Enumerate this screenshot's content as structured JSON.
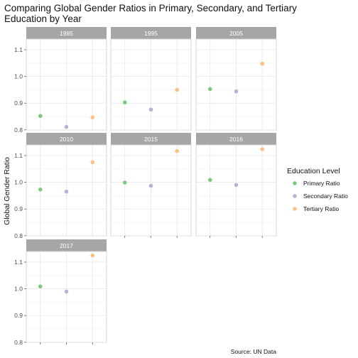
{
  "chart_data": {
    "type": "scatter",
    "title_lines": [
      "Comparing Global Gender Ratios in Primary, Secondary, and Tertiary",
      "Education by Year"
    ],
    "ylabel": "Global Gender Ratio",
    "xlabel": "",
    "ylim": [
      0.8,
      1.1
    ],
    "y_ticks": [
      "0.8",
      "0.9",
      "1.0",
      "1.1"
    ],
    "categories": [
      "Primary Ratio",
      "Secondary Ratio",
      "Tertiary Ratio"
    ],
    "x_tick_labels_shown": false,
    "grid": true,
    "legend": {
      "title": "Education Level",
      "position": "right",
      "items": [
        {
          "label": "Primary Ratio",
          "color": "#7fc97f"
        },
        {
          "label": "Secondary Ratio",
          "color": "#beaed4"
        },
        {
          "label": "Tertiary Ratio",
          "color": "#fdc086"
        }
      ]
    },
    "facets": [
      {
        "year": "1985",
        "values": [
          0.852,
          0.811,
          0.847
        ]
      },
      {
        "year": "1995",
        "values": [
          0.903,
          0.876,
          0.95
        ]
      },
      {
        "year": "2005",
        "values": [
          0.953,
          0.944,
          1.048
        ]
      },
      {
        "year": "2010",
        "values": [
          0.973,
          0.965,
          1.075
        ]
      },
      {
        "year": "2015",
        "values": [
          0.999,
          0.987,
          1.117
        ]
      },
      {
        "year": "2016",
        "values": [
          1.009,
          0.99,
          1.124
        ]
      },
      {
        "year": "2017",
        "values": [
          1.009,
          0.99,
          1.125
        ]
      }
    ],
    "caption": "Source: UN Data"
  }
}
